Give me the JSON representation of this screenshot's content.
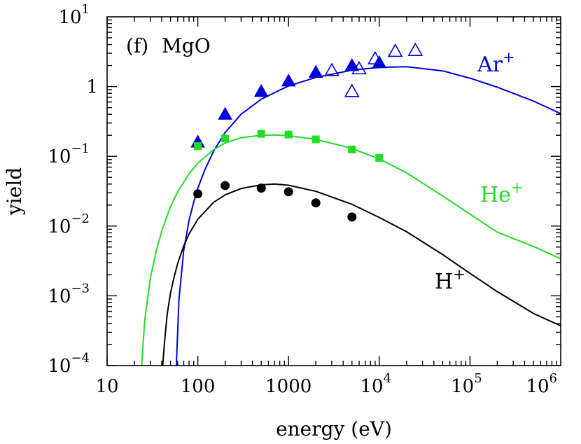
{
  "chart_data": {
    "type": "scatter",
    "panel_label": "(f)",
    "material": "MgO",
    "xlabel": "energy (eV)",
    "ylabel": "yield",
    "xscale": "log",
    "yscale": "log",
    "xlim": [
      10,
      1000000
    ],
    "ylim": [
      0.0001,
      10
    ],
    "x_ticks": [
      {
        "value": 10,
        "base": "10",
        "exp": ""
      },
      {
        "value": 100,
        "base": "100",
        "exp": ""
      },
      {
        "value": 1000,
        "base": "1000",
        "exp": ""
      },
      {
        "value": 10000,
        "base": "10",
        "exp": "4"
      },
      {
        "value": 100000,
        "base": "10",
        "exp": "5"
      },
      {
        "value": 1000000,
        "base": "10",
        "exp": "6"
      }
    ],
    "y_ticks": [
      {
        "value": 0.0001,
        "base": "10",
        "exp": "−4"
      },
      {
        "value": 0.001,
        "base": "10",
        "exp": "−3"
      },
      {
        "value": 0.01,
        "base": "10",
        "exp": "−2"
      },
      {
        "value": 0.1,
        "base": "10",
        "exp": "−1"
      },
      {
        "value": 1,
        "base": "1",
        "exp": ""
      },
      {
        "value": 10,
        "base": "10",
        "exp": "1"
      }
    ],
    "grid": false,
    "series": [
      {
        "name": "Ar",
        "charge": "+",
        "color": "#0000dd",
        "curve": {
          "x": [
            58,
            62,
            70,
            80,
            90,
            100,
            120,
            150,
            200,
            300,
            500,
            1000,
            2000,
            5000,
            10000,
            20000,
            50000,
            100000,
            200000,
            500000,
            1000000
          ],
          "y": [
            0.0001,
            0.0009,
            0.0045,
            0.012,
            0.022,
            0.035,
            0.065,
            0.12,
            0.22,
            0.4,
            0.66,
            1.02,
            1.35,
            1.72,
            1.88,
            1.93,
            1.68,
            1.32,
            0.98,
            0.62,
            0.41
          ]
        },
        "points_filled": {
          "marker": "triangle",
          "x": [
            100,
            200,
            500,
            1000,
            2000,
            5000,
            10000
          ],
          "y": [
            0.16,
            0.4,
            0.85,
            1.2,
            1.6,
            2.0,
            2.2
          ]
        },
        "points_open": {
          "marker": "triangle-open",
          "x": [
            3000,
            5000,
            6000,
            9000,
            15000,
            25000
          ],
          "y": [
            1.7,
            0.85,
            1.8,
            2.5,
            3.2,
            3.3
          ]
        }
      },
      {
        "name": "He",
        "charge": "+",
        "color": "#22dd22",
        "curve": {
          "x": [
            24,
            26,
            30,
            35,
            40,
            50,
            60,
            80,
            100,
            150,
            200,
            300,
            500,
            700,
            1000,
            2000,
            5000,
            10000,
            20000,
            50000,
            100000,
            200000,
            500000,
            1000000
          ],
          "y": [
            0.0001,
            0.00045,
            0.0018,
            0.0045,
            0.0085,
            0.019,
            0.031,
            0.056,
            0.08,
            0.125,
            0.155,
            0.185,
            0.2,
            0.202,
            0.198,
            0.175,
            0.13,
            0.092,
            0.058,
            0.027,
            0.0148,
            0.0082,
            0.0051,
            0.0034
          ]
        },
        "points": {
          "marker": "square",
          "x": [
            100,
            200,
            500,
            1000,
            2000,
            5000,
            10000
          ],
          "y": [
            0.14,
            0.18,
            0.21,
            0.205,
            0.175,
            0.125,
            0.095
          ]
        }
      },
      {
        "name": "H",
        "charge": "+",
        "color": "#000000",
        "curve": {
          "x": [
            41,
            43,
            46,
            50,
            55,
            60,
            70,
            80,
            100,
            150,
            200,
            300,
            500,
            700,
            1000,
            2000,
            5000,
            10000,
            20000,
            50000,
            100000,
            200000,
            500000,
            1000000
          ],
          "y": [
            0.0001,
            0.00022,
            0.00055,
            0.0011,
            0.0019,
            0.0029,
            0.0052,
            0.0077,
            0.0125,
            0.022,
            0.028,
            0.0345,
            0.039,
            0.04,
            0.0385,
            0.0315,
            0.0205,
            0.0133,
            0.0083,
            0.0039,
            0.0021,
            0.00115,
            0.00056,
            0.00037
          ]
        },
        "points": {
          "marker": "circle",
          "x": [
            100,
            200,
            500,
            1000,
            2000,
            5000
          ],
          "y": [
            0.029,
            0.038,
            0.035,
            0.031,
            0.0215,
            0.0135
          ]
        }
      }
    ]
  }
}
